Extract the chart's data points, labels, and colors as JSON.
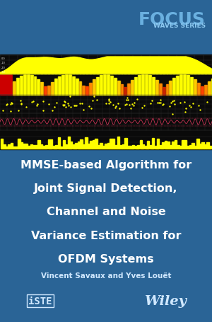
{
  "bg_color": "#2a6496",
  "black_panel_bg": "#0a0a0a",
  "focus_text": "FOCUS",
  "waves_text": "WAVES SERIES",
  "title_lines": [
    "MMSE-based Algorithm for",
    "Joint Signal Detection,",
    "Channel and Noise",
    "Variance Estimation for",
    "OFDM Systems"
  ],
  "authors": "Vincent Savaux and Yves Louët",
  "focus_color": "#6ab0e0",
  "waves_color": "#8cc8f0",
  "title_color": "#ffffff",
  "author_color": "#d0e8ff",
  "logo_color": "#d0e8ff",
  "yellow_color": "#ffff00",
  "red_color": "#cc0000"
}
